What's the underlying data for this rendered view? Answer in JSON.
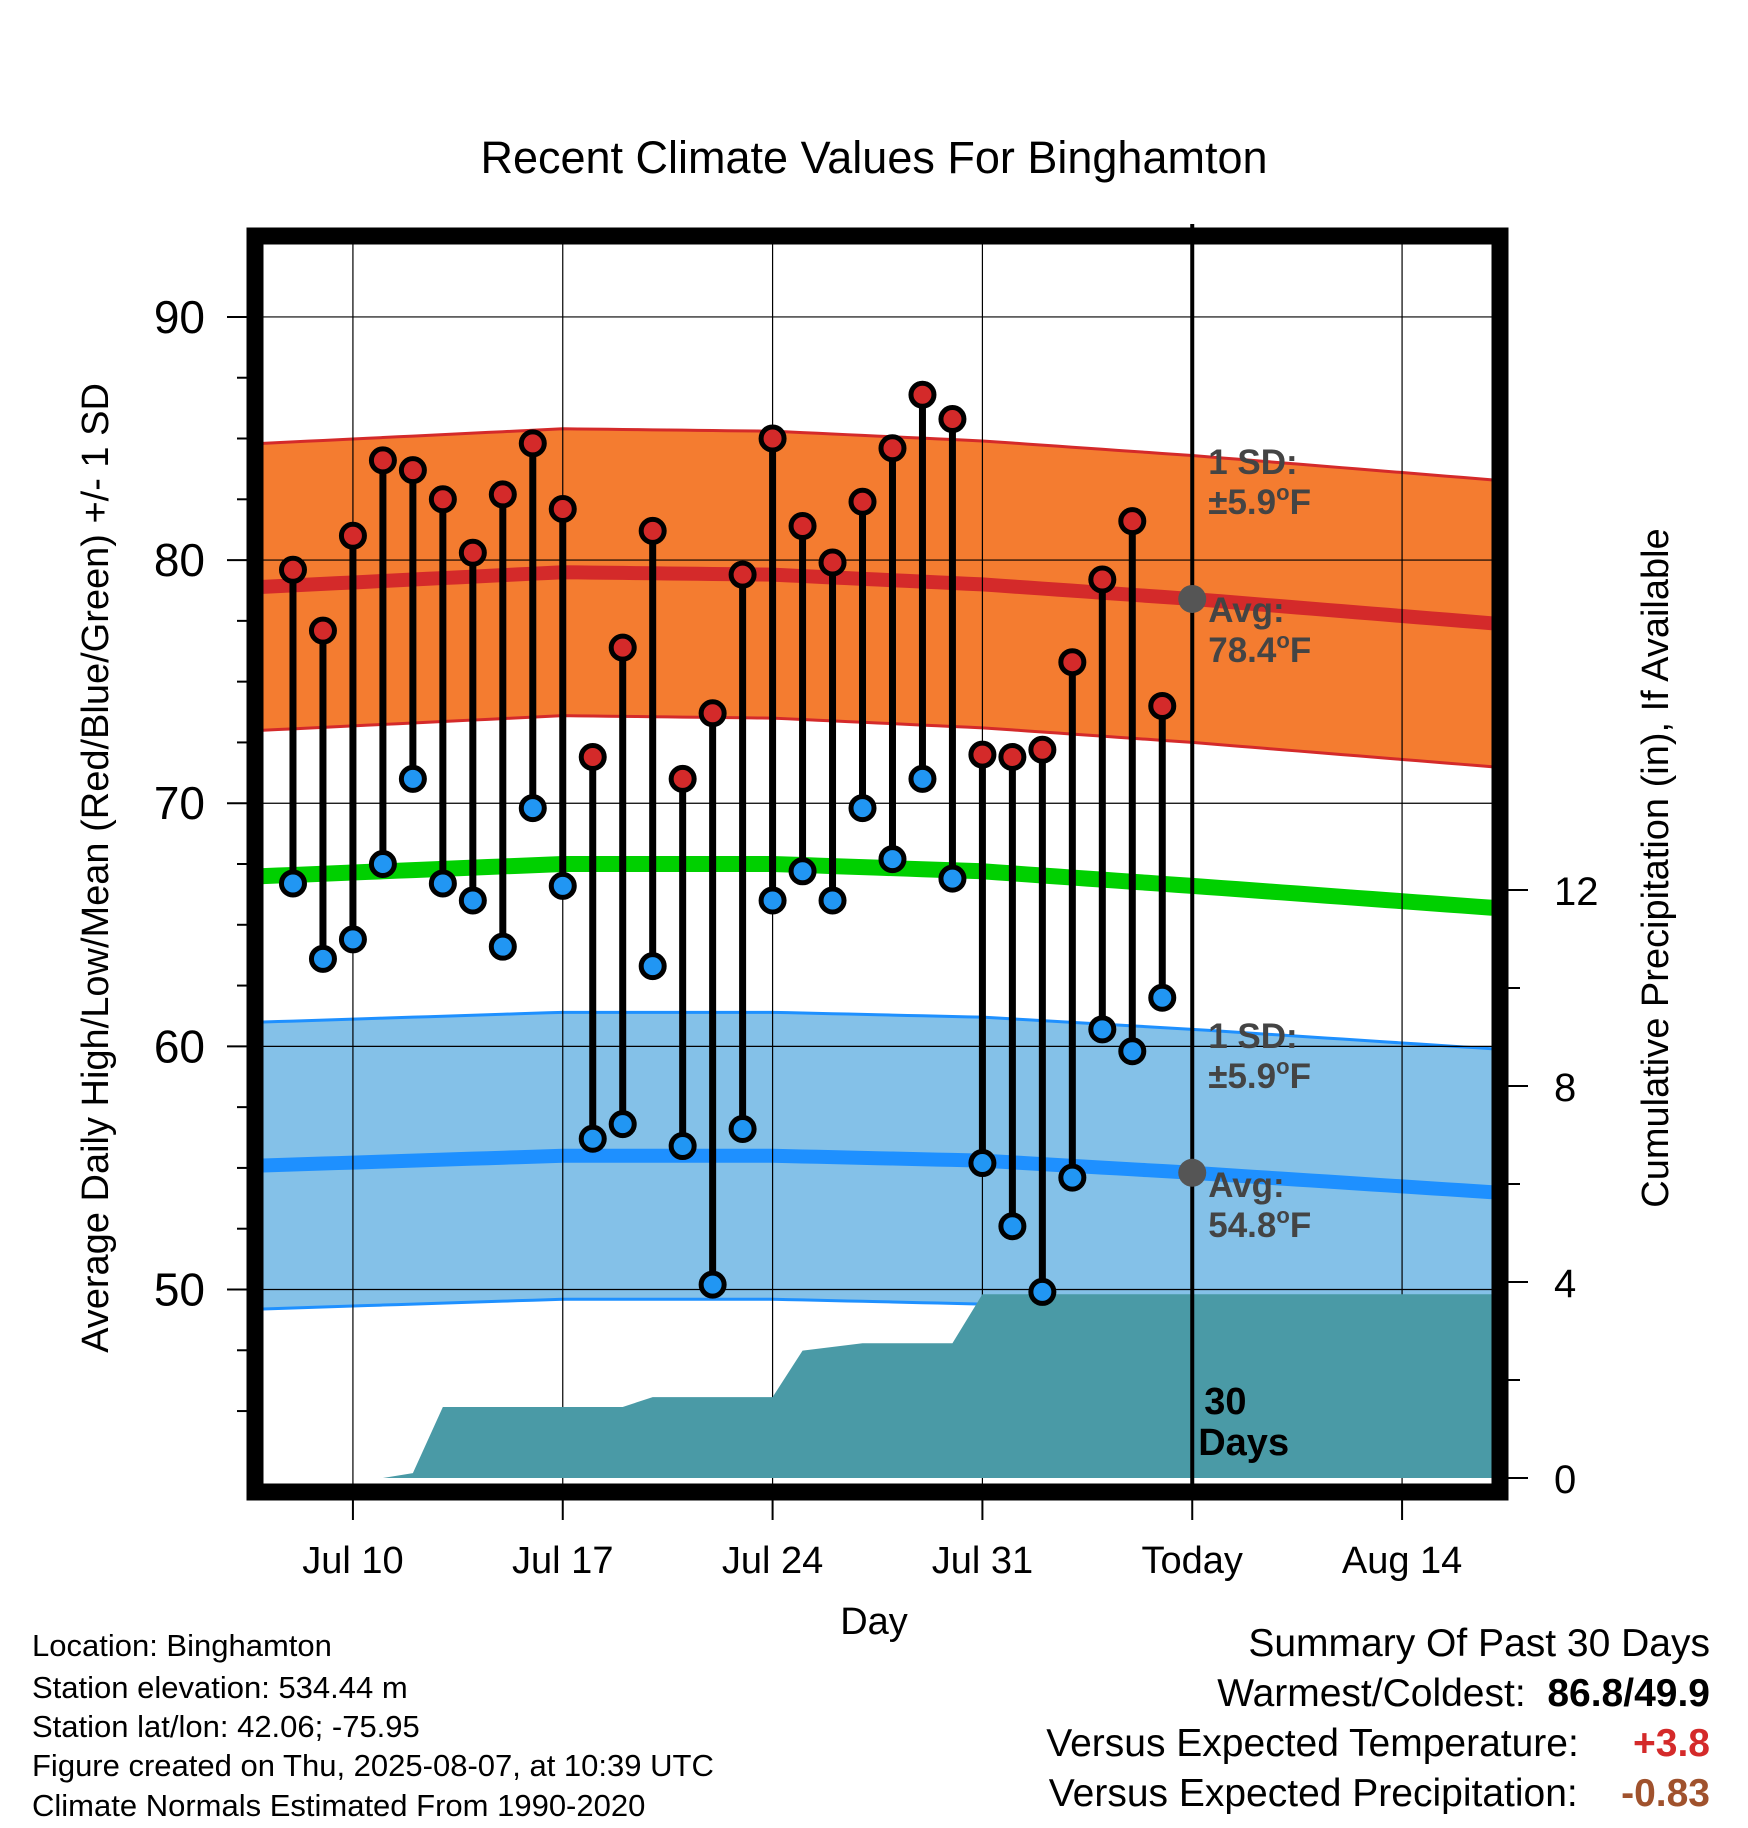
{
  "chart_data": {
    "type": "line",
    "title": "Recent Climate Values For Binghamton",
    "xlabel": "Day",
    "ylabel": "Average Daily High/Low/Mean (Red/Blue/Green) +/- 1 SD",
    "y2label": "Cumulative Precipitation (in), If Available",
    "ylim": [
      42,
      93
    ],
    "y2lim": [
      0,
      20
    ],
    "xlim": [
      "2025-07-07",
      "2025-08-17"
    ],
    "grid": true,
    "x_tick_labels": [
      "Jul 10",
      "Jul 17",
      "Jul 24",
      "Jul 31",
      "Today",
      "Aug 14"
    ],
    "x_tick_dates": [
      "2025-07-10",
      "2025-07-17",
      "2025-07-24",
      "2025-07-31",
      "2025-08-07",
      "2025-08-14"
    ],
    "y_ticks": [
      50,
      60,
      70,
      80,
      90
    ],
    "y2_ticks": [
      0,
      4,
      8,
      12
    ],
    "today": "2025-08-07",
    "today_label": [
      "30",
      "Days"
    ],
    "dates": [
      "2025-07-08",
      "2025-07-09",
      "2025-07-10",
      "2025-07-11",
      "2025-07-12",
      "2025-07-13",
      "2025-07-14",
      "2025-07-15",
      "2025-07-16",
      "2025-07-17",
      "2025-07-18",
      "2025-07-19",
      "2025-07-20",
      "2025-07-21",
      "2025-07-22",
      "2025-07-23",
      "2025-07-24",
      "2025-07-25",
      "2025-07-26",
      "2025-07-27",
      "2025-07-28",
      "2025-07-29",
      "2025-07-30",
      "2025-07-31",
      "2025-08-01",
      "2025-08-02",
      "2025-08-03",
      "2025-08-04",
      "2025-08-05",
      "2025-08-06"
    ],
    "series": [
      {
        "name": "High",
        "color": "#d42a2a",
        "values": [
          79.6,
          77.1,
          81.0,
          84.1,
          83.7,
          82.5,
          80.3,
          82.7,
          84.8,
          82.1,
          71.9,
          76.4,
          81.2,
          71.0,
          73.7,
          79.4,
          85.0,
          81.4,
          79.9,
          82.4,
          84.6,
          86.8,
          85.8,
          72.0,
          71.9,
          72.2,
          75.8,
          79.2,
          81.6,
          74.0
        ]
      },
      {
        "name": "Low",
        "color": "#2196f3",
        "values": [
          66.7,
          63.6,
          64.4,
          67.5,
          71.0,
          66.7,
          66.0,
          64.1,
          69.8,
          66.6,
          56.2,
          56.8,
          63.3,
          55.9,
          50.2,
          56.6,
          66.0,
          67.2,
          66.0,
          69.8,
          67.7,
          71.0,
          66.9,
          55.2,
          52.6,
          49.9,
          54.6,
          60.7,
          59.8,
          62.0
        ]
      }
    ],
    "normals": {
      "dates": [
        "2025-07-07",
        "2025-07-17",
        "2025-07-24",
        "2025-07-31",
        "2025-08-07",
        "2025-08-17"
      ],
      "high_avg": [
        78.9,
        79.5,
        79.4,
        79.0,
        78.4,
        77.4
      ],
      "low_avg": [
        55.1,
        55.5,
        55.5,
        55.3,
        54.8,
        54.0
      ],
      "mean_avg": [
        67.0,
        67.5,
        67.5,
        67.2,
        66.6,
        65.7
      ],
      "sd": 5.9,
      "colors": {
        "high_band": "#f47c30",
        "high_line": "#d42a2a",
        "low_band": "#84c1e8",
        "low_line": "#1e90ff",
        "mean_line": "#00d000"
      }
    },
    "precipitation": {
      "color": "#4a9aa6",
      "dates": [
        "2025-07-07",
        "2025-07-11",
        "2025-07-12",
        "2025-07-13",
        "2025-07-19",
        "2025-07-20",
        "2025-07-24",
        "2025-07-25",
        "2025-07-27",
        "2025-07-30",
        "2025-07-31",
        "2025-08-17"
      ],
      "values": [
        0,
        0,
        0.1,
        1.45,
        1.45,
        1.65,
        1.65,
        2.6,
        2.75,
        2.75,
        3.75,
        3.75
      ]
    },
    "annotations": {
      "high_sd": [
        "1 SD:",
        "±5.9",
        "o",
        "F"
      ],
      "high_avg": [
        "Avg:",
        "78.4",
        "o",
        "F"
      ],
      "low_sd": [
        "1 SD:",
        "±5.9",
        "o",
        "F"
      ],
      "low_avg": [
        "Avg:",
        "54.8",
        "o",
        "F"
      ]
    }
  },
  "station": {
    "location": "Location: Binghamton",
    "elevation": "Station elevation: 534.44 m",
    "latlon": "Station lat/lon: 42.06; -75.95",
    "created": "Figure created on Thu, 2025-08-07, at 10:39 UTC",
    "normals_note": "Climate Normals Estimated From 1990-2020"
  },
  "summary": {
    "title": "Summary Of Past 30 Days",
    "warmest_label": "Warmest/Coldest:",
    "warmest_value": "86.8",
    "slash": "/",
    "coldest_value": "49.9",
    "temp_label": "Versus Expected Temperature:",
    "temp_value": "+3.8",
    "temp_color": "#d42a2a",
    "precip_label": "Versus Expected Precipitation:",
    "precip_value": "-0.83",
    "precip_color": "#a0522d"
  }
}
